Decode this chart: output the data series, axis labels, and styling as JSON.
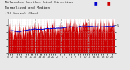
{
  "bg_color": "#e8e8e8",
  "plot_bg": "#ffffff",
  "grid_color": "#c8c8c8",
  "fill_color": "#cc0000",
  "line_color": "#cc0000",
  "median_color": "#0000cc",
  "ylim": [
    0,
    5
  ],
  "yticks": [
    0,
    1,
    2,
    3,
    4,
    5
  ],
  "ytick_labels_right": [
    "",
    "",
    "",
    "",
    "5",
    ""
  ],
  "num_points": 288,
  "legend_norm_color": "#0000cc",
  "legend_med_color": "#cc0000",
  "title_fontsize": 3.2,
  "tick_fontsize": 2.5,
  "data_base": 3.2,
  "data_amplitude": 0.9,
  "data_noise": 0.7,
  "data_clip_min": 1.5,
  "data_clip_max": 5.0,
  "median_window": 40
}
